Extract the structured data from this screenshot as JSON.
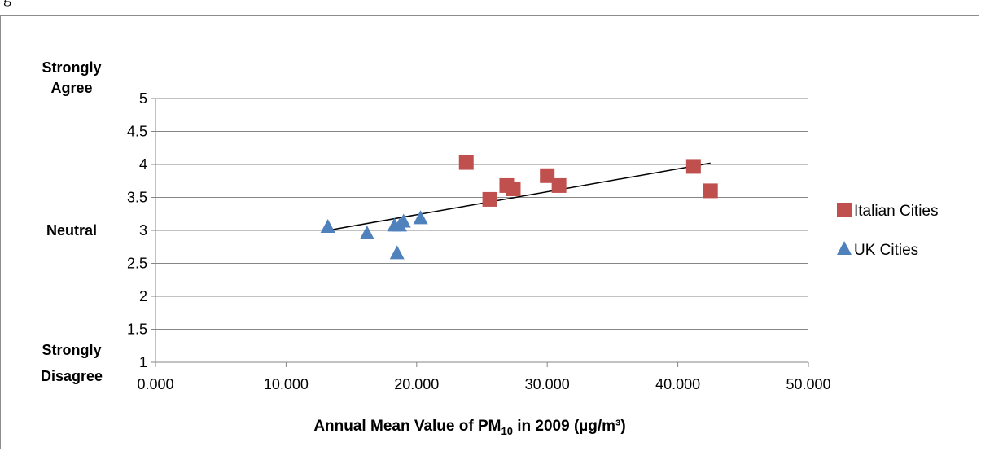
{
  "caption": "g",
  "chart_data": {
    "type": "scatter",
    "title": "",
    "xlabel": "Annual Mean Value of PM",
    "xlabel_sub": "10",
    "xlabel_rest": " in 2009 (µg/m³)",
    "ylabel": "",
    "xlim": [
      0,
      50
    ],
    "ylim": [
      1,
      5
    ],
    "x_ticks": [
      0,
      10,
      20,
      30,
      40,
      50
    ],
    "x_tick_labels": [
      "0.000",
      "10.000",
      "20.000",
      "30.000",
      "40.000",
      "50.000"
    ],
    "y_ticks": [
      1,
      1.5,
      2,
      2.5,
      3,
      3.5,
      4,
      4.5,
      5
    ],
    "y_tick_labels": [
      "1",
      "1.5",
      "2",
      "2.5",
      "3",
      "3.5",
      "4",
      "4.5",
      "5"
    ],
    "y_category_labels": [
      {
        "lines": [
          "Strongly",
          "Agree"
        ],
        "y": 5
      },
      {
        "lines": [
          "Neutral"
        ],
        "y": 3
      },
      {
        "lines": [
          "Strongly",
          "Disagree"
        ],
        "y": 1
      }
    ],
    "grid": true,
    "legend_position": "right",
    "series": [
      {
        "name": "Italian Cities",
        "marker": "square",
        "color": "#c0504d",
        "points": [
          {
            "x": 23.8,
            "y": 4.03
          },
          {
            "x": 25.6,
            "y": 3.47
          },
          {
            "x": 26.9,
            "y": 3.68
          },
          {
            "x": 27.4,
            "y": 3.63
          },
          {
            "x": 30.0,
            "y": 3.83
          },
          {
            "x": 30.9,
            "y": 3.68
          },
          {
            "x": 41.2,
            "y": 3.97
          },
          {
            "x": 42.5,
            "y": 3.6
          }
        ]
      },
      {
        "name": "UK Cities",
        "marker": "triangle",
        "color": "#4f81bd",
        "points": [
          {
            "x": 13.2,
            "y": 3.05
          },
          {
            "x": 16.2,
            "y": 2.95
          },
          {
            "x": 18.3,
            "y": 3.07
          },
          {
            "x": 18.7,
            "y": 3.07
          },
          {
            "x": 19.0,
            "y": 3.13
          },
          {
            "x": 20.3,
            "y": 3.18
          },
          {
            "x": 18.5,
            "y": 2.65
          }
        ]
      }
    ],
    "trendline": {
      "x": [
        13.2,
        42.5
      ],
      "y": [
        3.0,
        4.02
      ],
      "color": "#000000"
    }
  }
}
